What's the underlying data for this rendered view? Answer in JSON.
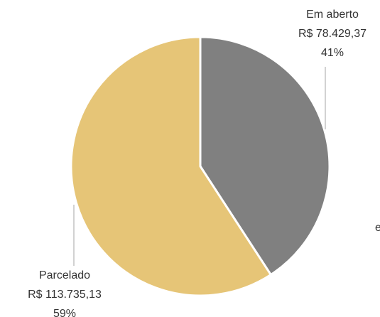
{
  "chart_data": {
    "type": "pie",
    "slices": [
      {
        "label": "Em aberto",
        "value_text": "R$ 78.429,37",
        "value": 78429.37,
        "percent_text": "41%",
        "color": "#808080"
      },
      {
        "label": "Parcelado",
        "value_text": "R$ 113.735,13",
        "value": 113735.13,
        "percent_text": "59%",
        "color": "#E6C577"
      }
    ],
    "legend": "none"
  },
  "stray_text": "e"
}
